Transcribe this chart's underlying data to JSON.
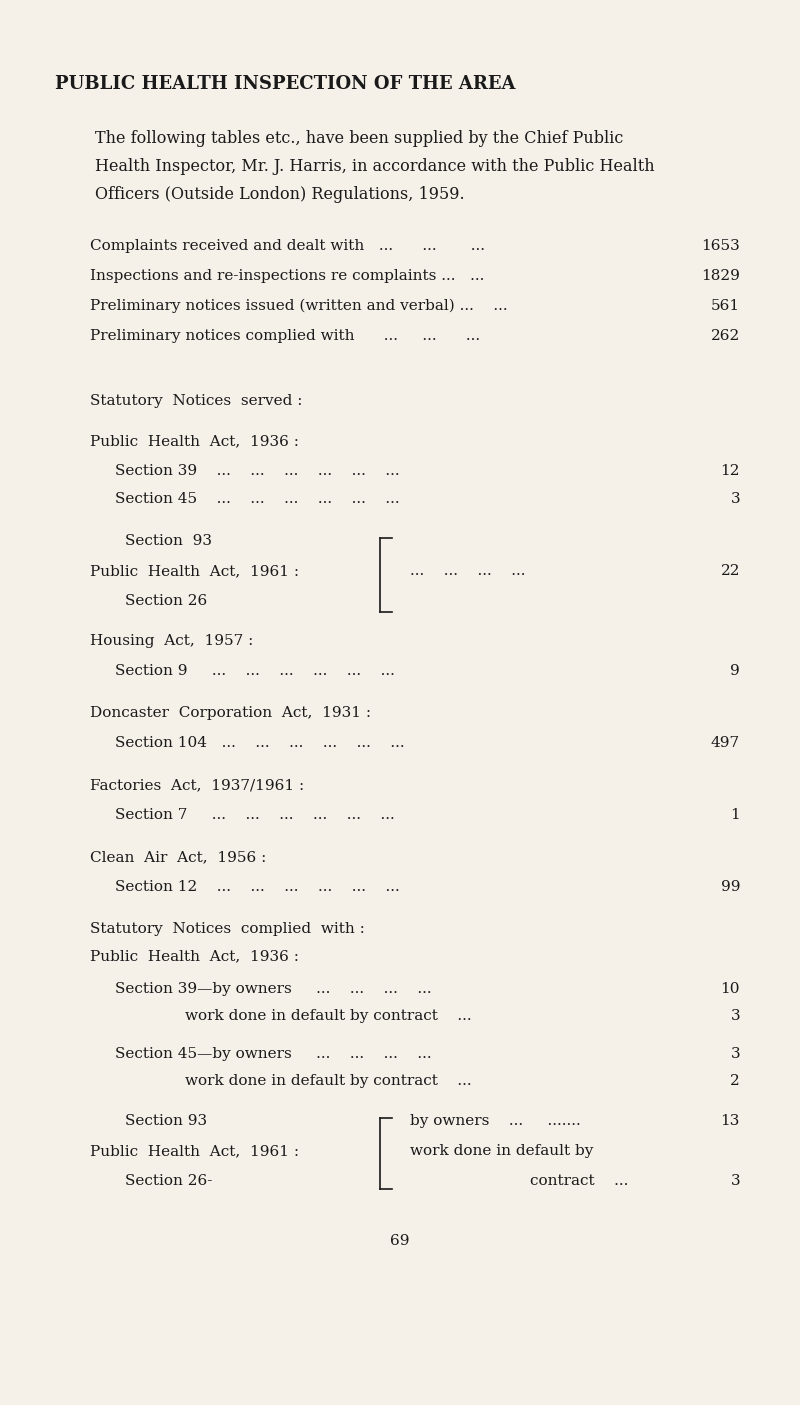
{
  "bg_color": "#f5f0e8",
  "text_color": "#1a1a1a",
  "figsize": [
    8.0,
    14.05
  ],
  "dpi": 100,
  "title": "PUBLIC HEALTH INSPECTION OF THE AREA",
  "intro_lines": [
    "The following tables etc., have been supplied by the Chief Public",
    "Health Inspector, Mr. J. Harris, in accordance with the Public Health",
    "Officers (Outside London) Regulations, 1959."
  ],
  "stats": [
    [
      "Complaints received and dealt with   ...      ...       ...",
      "1653"
    ],
    [
      "Inspections and re-inspections re complaints ...   ...",
      "1829"
    ],
    [
      "Preliminary notices issued (written and verbal) ...    ...",
      "561"
    ],
    [
      "Preliminary notices complied with      ...     ...      ...",
      "262"
    ]
  ],
  "page_number": "69"
}
